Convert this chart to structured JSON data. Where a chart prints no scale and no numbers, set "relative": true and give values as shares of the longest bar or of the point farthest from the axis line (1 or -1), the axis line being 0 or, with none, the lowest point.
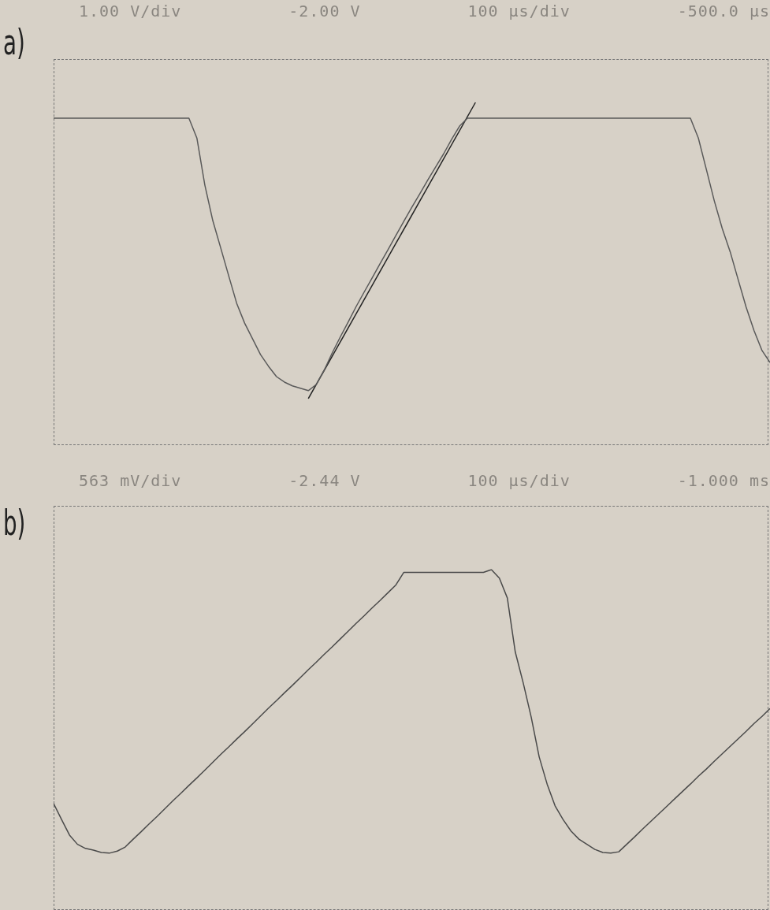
{
  "chart_data": [
    {
      "type": "line",
      "title": "a)",
      "relative": true,
      "annotations": [
        "1.00 V/div",
        "-2.00 V",
        "100 µs/div",
        "-500.0 µs"
      ],
      "categories": [
        null,
        null,
        null,
        null,
        null,
        null,
        null,
        null,
        null,
        null,
        null,
        null,
        null,
        null,
        null,
        null,
        null,
        null,
        null,
        null,
        null,
        null,
        null,
        null,
        null,
        null,
        null,
        null,
        null,
        null,
        null,
        null,
        null,
        null,
        null,
        null,
        null,
        null,
        null,
        null,
        null,
        null,
        null,
        null,
        null,
        null,
        null,
        null,
        null,
        null,
        null,
        null,
        null,
        null,
        null,
        null,
        null,
        null,
        null,
        null,
        null,
        null,
        null,
        null,
        null,
        null,
        null,
        null,
        null,
        null,
        null,
        null,
        null,
        null,
        null,
        null,
        null,
        null,
        null,
        null,
        null,
        null,
        null,
        null,
        null,
        null,
        null,
        null,
        null,
        null,
        null
      ],
      "series": [
        {
          "color": "#5a5a5a",
          "values": [
            0.954,
            0.954,
            0.954,
            0.954,
            0.954,
            0.954,
            0.954,
            0.954,
            0.954,
            0.954,
            0.954,
            0.954,
            0.954,
            0.954,
            0.954,
            0.954,
            0.954,
            0.954,
            0.896,
            0.759,
            0.655,
            0.575,
            0.494,
            0.414,
            0.356,
            0.31,
            0.264,
            0.23,
            0.2,
            0.184,
            0.173,
            0.166,
            0.159,
            0.177,
            0.219,
            0.269,
            0.315,
            0.359,
            0.404,
            0.446,
            0.487,
            0.529,
            0.57,
            0.612,
            0.653,
            0.694,
            0.733,
            0.773,
            0.812,
            0.85,
            0.892,
            0.931,
            0.954,
            0.954,
            0.954,
            0.954,
            0.954,
            0.954,
            0.954,
            0.954,
            0.954,
            0.954,
            0.954,
            0.954,
            0.954,
            0.954,
            0.954,
            0.954,
            0.954,
            0.954,
            0.954,
            0.954,
            0.954,
            0.954,
            0.954,
            0.954,
            0.954,
            0.954,
            0.954,
            0.954,
            0.954,
            0.896,
            0.805,
            0.713,
            0.632,
            0.564,
            0.483,
            0.403,
            0.334,
            0.276,
            0.241
          ]
        },
        {
          "color": "#222222",
          "values": [
            null,
            null,
            null,
            null,
            null,
            null,
            null,
            null,
            null,
            null,
            null,
            null,
            null,
            null,
            null,
            null,
            null,
            null,
            null,
            null,
            null,
            null,
            null,
            null,
            null,
            null,
            null,
            null,
            null,
            null,
            null,
            null,
            0.136,
            null,
            null,
            null,
            null,
            null,
            null,
            null,
            null,
            null,
            null,
            null,
            null,
            null,
            null,
            null,
            null,
            null,
            null,
            null,
            null,
            1,
            null,
            null,
            null,
            null,
            null,
            null,
            null,
            null,
            null,
            null,
            null,
            null,
            null,
            null,
            null,
            null,
            null,
            null,
            null,
            null,
            null,
            null,
            null,
            null,
            null,
            null,
            null,
            null,
            null,
            null,
            null,
            null,
            null,
            null,
            null,
            null,
            null
          ]
        }
      ]
    },
    {
      "type": "line",
      "title": "b)",
      "relative": true,
      "annotations": [
        "563 mV/div",
        "-2.44 V",
        "100 µs/div",
        "-1.000 ms"
      ],
      "categories": [
        null,
        null,
        null,
        null,
        null,
        null,
        null,
        null,
        null,
        null,
        null,
        null,
        null,
        null,
        null,
        null,
        null,
        null,
        null,
        null,
        null,
        null,
        null,
        null,
        null,
        null,
        null,
        null,
        null,
        null,
        null,
        null,
        null,
        null,
        null,
        null,
        null,
        null,
        null,
        null,
        null,
        null,
        null,
        null,
        null,
        null,
        null,
        null,
        null,
        null,
        null,
        null,
        null,
        null,
        null,
        null,
        null,
        null,
        null,
        null,
        null,
        null,
        null,
        null,
        null,
        null,
        null,
        null,
        null,
        null,
        null,
        null,
        null,
        null,
        null,
        null,
        null,
        null,
        null,
        null,
        null,
        null,
        null,
        null,
        null,
        null,
        null,
        null,
        null,
        null,
        null
      ],
      "series": [
        {
          "color": "#4a4a4a",
          "values": [
            0.313,
            0.266,
            0.22,
            0.193,
            0.181,
            0.176,
            0.169,
            0.167,
            0.173,
            0.185,
            0.208,
            0.23,
            0.253,
            0.275,
            0.298,
            0.321,
            0.343,
            0.366,
            0.388,
            0.411,
            0.434,
            0.457,
            0.479,
            0.502,
            0.524,
            0.547,
            0.57,
            0.593,
            0.615,
            0.638,
            0.66,
            0.683,
            0.706,
            0.728,
            0.751,
            0.773,
            0.796,
            0.819,
            0.842,
            0.864,
            0.887,
            0.909,
            0.932,
            0.955,
            0.992,
            0.992,
            0.992,
            0.992,
            0.992,
            0.992,
            0.992,
            0.992,
            0.992,
            0.992,
            0.992,
            1,
            0.975,
            0.917,
            0.758,
            0.667,
            0.567,
            0.45,
            0.37,
            0.306,
            0.266,
            0.232,
            0.208,
            0.193,
            0.178,
            0.169,
            0.167,
            0.171,
            0.193,
            0.215,
            0.238,
            0.26,
            0.282,
            0.304,
            0.326,
            0.348,
            0.37,
            0.393,
            0.414,
            0.437,
            0.459,
            0.481,
            0.503,
            0.525,
            0.548,
            0.569,
            0.592
          ]
        }
      ]
    }
  ]
}
